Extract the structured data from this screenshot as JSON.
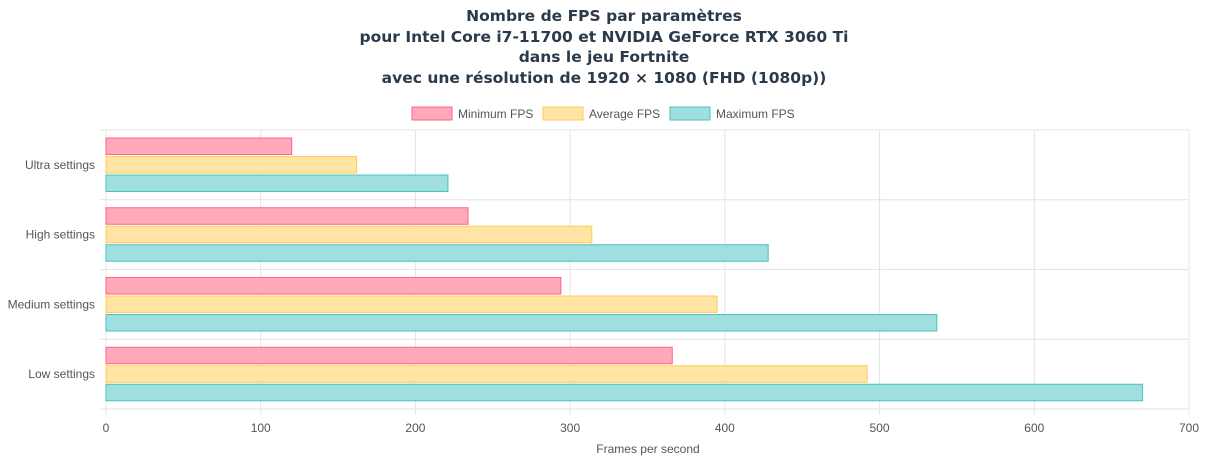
{
  "chart_data": {
    "type": "bar",
    "orientation": "horizontal",
    "title": [
      "Nombre de FPS par paramètres",
      "pour Intel Core i7-11700 et NVIDIA GeForce RTX 3060 Ti",
      "dans le jeu Fortnite",
      "avec une résolution de 1920 × 1080 (FHD (1080p))"
    ],
    "categories": [
      "Ultra settings",
      "High settings",
      "Medium settings",
      "Low settings"
    ],
    "series": [
      {
        "name": "Minimum FPS",
        "values": [
          120,
          234,
          294,
          366
        ],
        "fill": "#ffa9bb",
        "stroke": "#ff6384"
      },
      {
        "name": "Average FPS",
        "values": [
          162,
          314,
          395,
          492
        ],
        "fill": "#ffe4a6",
        "stroke": "#ffcd56"
      },
      {
        "name": "Maximum FPS",
        "values": [
          221,
          428,
          537,
          670
        ],
        "fill": "#a0dfdf",
        "stroke": "#4bc0c0"
      }
    ],
    "xlabel": "Frames per second",
    "ylabel": "",
    "xlim": [
      0,
      700
    ],
    "xticks": [
      0,
      100,
      200,
      300,
      400,
      500,
      600,
      700
    ],
    "grid": true,
    "legend": "top-center"
  }
}
